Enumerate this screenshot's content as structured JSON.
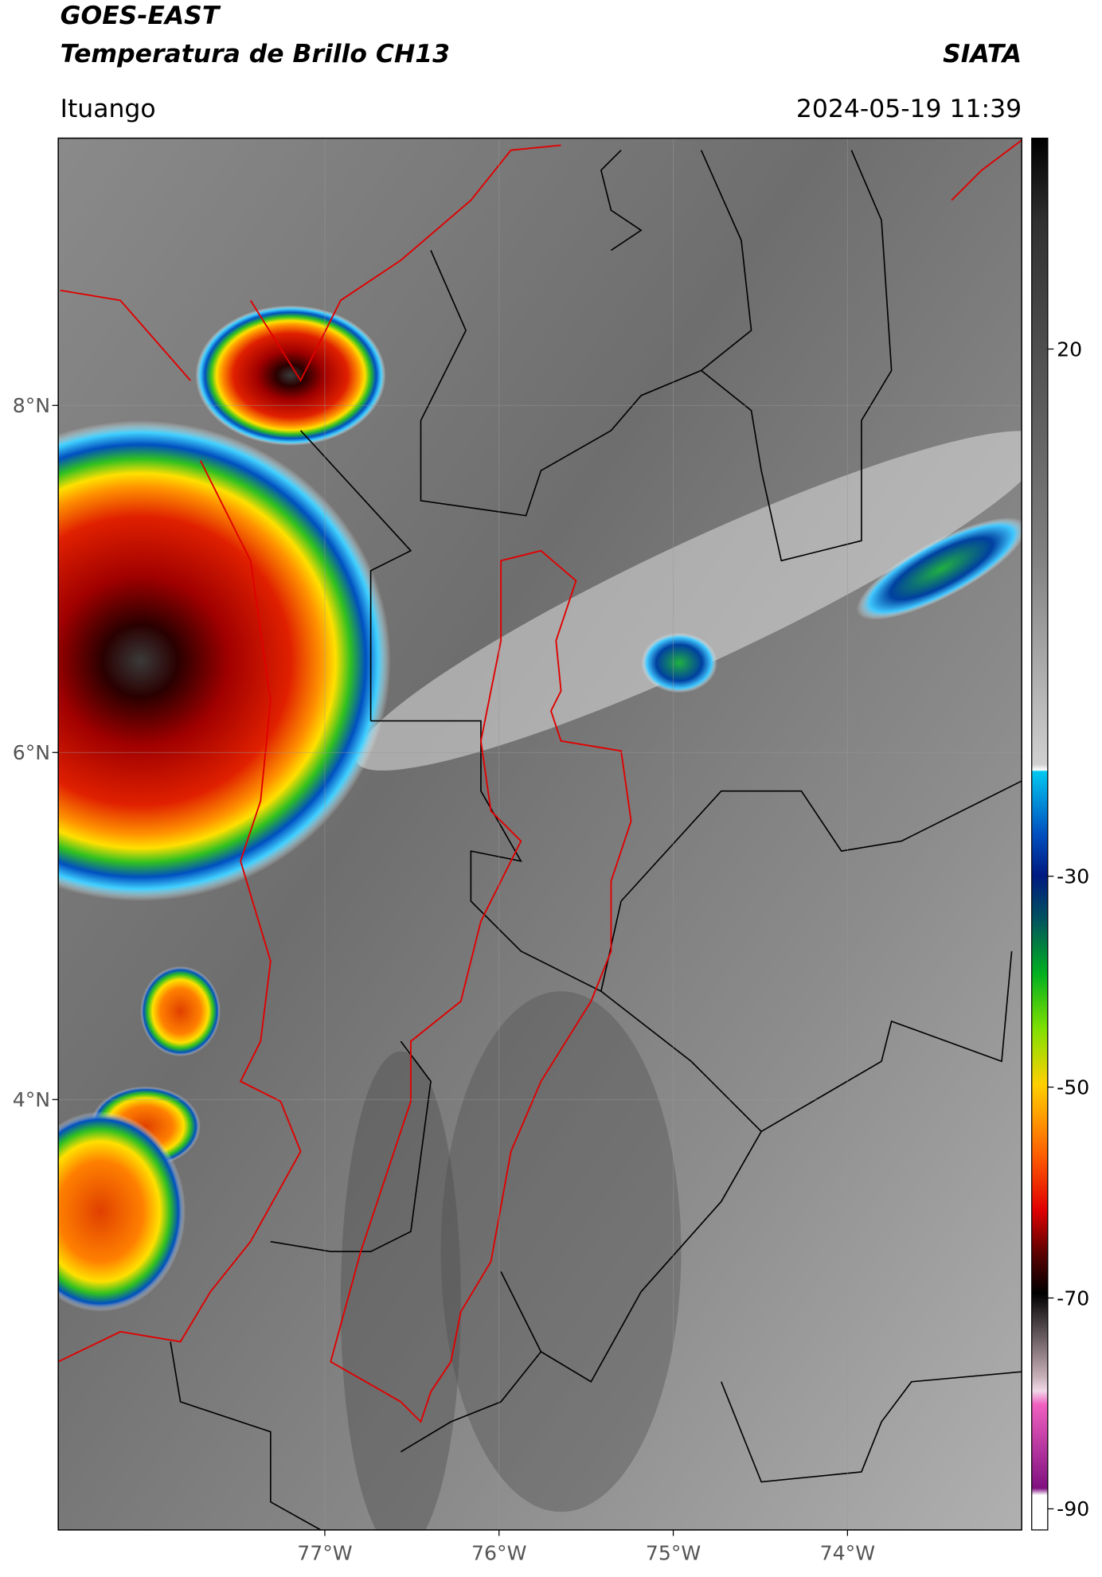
{
  "header": {
    "title_line1": "GOES-EAST",
    "title_line2": "Temperatura de Brillo CH13",
    "source": "SIATA",
    "region": "Ituango",
    "timestamp": "2024-05-19 11:39"
  },
  "map": {
    "lat_range": [
      1.52,
      9.54
    ],
    "lon_range": [
      -78.53,
      -73.0
    ],
    "lat_ticks": [
      {
        "value": 8,
        "label": "8°N"
      },
      {
        "value": 6,
        "label": "6°N"
      },
      {
        "value": 4,
        "label": "4°N"
      }
    ],
    "lon_ticks": [
      {
        "value": -77,
        "label": "77°W"
      },
      {
        "value": -76,
        "label": "76°W"
      },
      {
        "value": -75,
        "label": "75°W"
      },
      {
        "value": -74,
        "label": "74°W"
      }
    ]
  },
  "colorbar": {
    "range": [
      -92,
      40
    ],
    "ticks": [
      20,
      -30,
      -50,
      -70,
      -90
    ]
  }
}
